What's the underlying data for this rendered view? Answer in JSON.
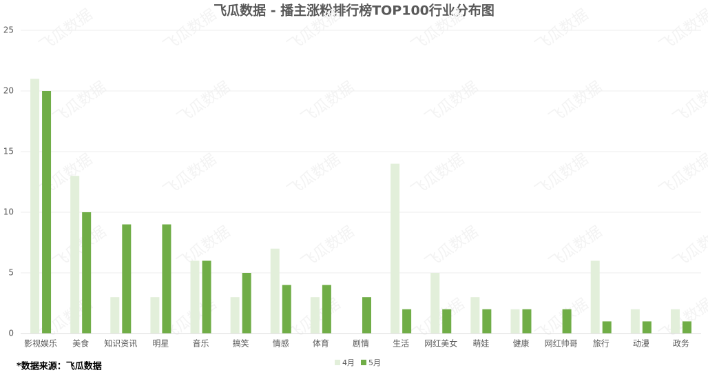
{
  "chart_data": {
    "type": "bar",
    "title": "飞瓜数据 - 播主涨粉排行榜TOP100行业分布图",
    "source": "*数据来源：飞瓜数据",
    "watermark": "飞瓜数据",
    "categories": [
      "影视娱乐",
      "美食",
      "知识资讯",
      "明星",
      "音乐",
      "搞笑",
      "情感",
      "体育",
      "剧情",
      "生活",
      "网红美女",
      "萌娃",
      "健康",
      "网红帅哥",
      "旅行",
      "动漫",
      "政务"
    ],
    "series": [
      {
        "name": "4月",
        "color": "#e2efda",
        "values": [
          21,
          13,
          3,
          3,
          6,
          3,
          7,
          3,
          0,
          14,
          5,
          3,
          2,
          0,
          6,
          2,
          2
        ]
      },
      {
        "name": "5月",
        "color": "#70ad47",
        "values": [
          20,
          10,
          9,
          9,
          6,
          5,
          4,
          4,
          3,
          2,
          2,
          2,
          2,
          2,
          1,
          1,
          1
        ]
      }
    ],
    "ylim": [
      0,
      25
    ],
    "yticks": [
      0,
      5,
      10,
      15,
      20,
      25
    ],
    "grid": true,
    "legend": "bottom"
  }
}
